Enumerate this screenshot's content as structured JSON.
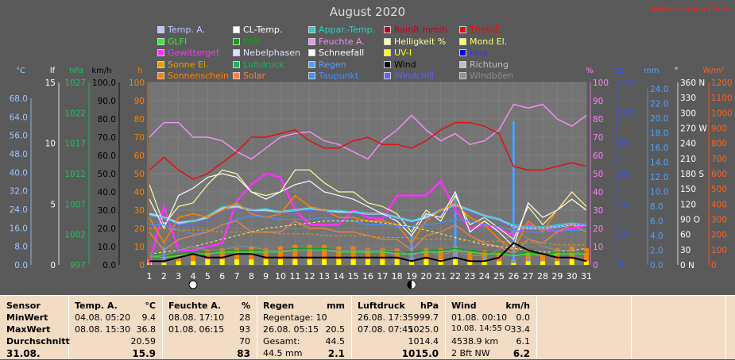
{
  "title": "August 2020",
  "watermark": "Wetterstation Peter",
  "legend": [
    {
      "label": "Temp. A.",
      "color": "#b8c8ff"
    },
    {
      "label": "CL-Temp.",
      "color": "#ffffff"
    },
    {
      "label": "Appar.-Temp.",
      "color": "#28d0c0"
    },
    {
      "label": "RainR mm/h",
      "color": "#c00020"
    },
    {
      "label": "ThetaE",
      "color": "#e01010"
    },
    {
      "label": "GLFI",
      "color": "#30f030"
    },
    {
      "label": "WBI",
      "color": "#10a010"
    },
    {
      "label": "Feuchte A.",
      "color": "#f090f0"
    },
    {
      "label": "Helligkeit %",
      "color": "#ffffa0"
    },
    {
      "label": "Mond El.",
      "color": "#ffff60"
    },
    {
      "label": "Gewittergef.",
      "color": "#ff30ff"
    },
    {
      "label": "Nebelphasen",
      "color": "#e0e0ff"
    },
    {
      "label": "Schneefall",
      "color": "#ffffff"
    },
    {
      "label": "UV-I",
      "color": "#ffff00"
    },
    {
      "label": "klux",
      "color": "#0000ff"
    },
    {
      "label": "Sonne El.",
      "color": "#e8a000"
    },
    {
      "label": "Luftdruck",
      "color": "#20b060"
    },
    {
      "label": "Regen",
      "color": "#50a0ff"
    },
    {
      "label": "Wind",
      "color": "#000000"
    },
    {
      "label": "Richtung",
      "color": "#c0c0c0"
    },
    {
      "label": "Sonnenschein",
      "color": "#ff8000"
    },
    {
      "label": "Solar",
      "color": "#ff8040"
    },
    {
      "label": "Taupunkt",
      "color": "#4090ff"
    },
    {
      "label": "Windchill",
      "color": "#6060ff"
    },
    {
      "label": "Windböen",
      "color": "#909090"
    }
  ],
  "axes": {
    "temp": {
      "unit": "°C",
      "ticks": [
        "68.0",
        "64.0",
        "56.0",
        "48.0",
        "40.0",
        "32.0",
        "24.0",
        "16.0",
        "8.0",
        "0.0"
      ],
      "color": "#9cc8ff"
    },
    "lf": {
      "unit": "lf",
      "ticks": [
        "15",
        "10",
        "5",
        "0"
      ],
      "color": "#ffffff"
    },
    "hpa": {
      "unit": "hPa",
      "ticks": [
        "1027",
        "1022",
        "1017",
        "1012",
        "1007",
        "1002",
        "997"
      ],
      "color": "#20c060"
    },
    "kmh": {
      "unit": "km/h",
      "ticks": [
        "100.0",
        "90.0",
        "80.0",
        "70.0",
        "60.0",
        "50.0",
        "40.0",
        "30.0",
        "20.0",
        "10.0",
        "0.0"
      ],
      "color": "#000000"
    },
    "h": {
      "unit": "h",
      "ticks": [
        "100",
        "90",
        "80",
        "70",
        "60",
        "50",
        "40",
        "30",
        "20",
        "10",
        "0"
      ],
      "color": "#ff8000"
    },
    "pct": {
      "unit": "%",
      "ticks": [
        "100",
        "90",
        "80",
        "70",
        "60",
        "50",
        "40",
        "30",
        "20",
        "10",
        "0"
      ],
      "color": "#ff80ff"
    },
    "cb": {
      "unit": "cb",
      "ticks": [
        "120",
        "100",
        "80",
        "60",
        "40",
        "20",
        "0"
      ],
      "color": "#3050ff"
    },
    "mm": {
      "unit": "mm",
      "ticks": [
        "24.0",
        "22.0",
        "20.0",
        "18.0",
        "16.0",
        "14.0",
        "12.0",
        "10.0",
        "8.0",
        "6.0",
        "4.0",
        "2.0",
        "0.0"
      ],
      "color": "#50a0ff"
    },
    "deg": {
      "unit": "°",
      "ticks": [
        "360 N",
        "330",
        "300",
        "270 W",
        "240",
        "210",
        "180 S",
        "150",
        "120",
        "90 O",
        "60",
        "30",
        "0 N"
      ],
      "color": "#ffffff"
    },
    "wm2": {
      "unit": "W/m²",
      "ticks": [
        "1200",
        "1100",
        "1000",
        "900",
        "800",
        "700",
        "600",
        "500",
        "400",
        "300",
        "200",
        "100",
        "0"
      ],
      "color": "#ff6020"
    }
  },
  "chart_data": {
    "type": "line",
    "x": [
      1,
      2,
      3,
      4,
      5,
      6,
      7,
      8,
      9,
      10,
      11,
      12,
      13,
      14,
      15,
      16,
      17,
      18,
      19,
      20,
      21,
      22,
      23,
      24,
      25,
      26,
      27,
      28,
      29,
      30,
      31
    ],
    "moon_phases": [
      {
        "day": 4,
        "phase": "new"
      },
      {
        "day": 19,
        "phase": "full"
      }
    ],
    "series": [
      {
        "name": "Luftdruck",
        "color": "#20b060",
        "width": 2.5,
        "values": [
          1015.2,
          1011.5,
          1010.7,
          1012.9,
          1015.6,
          1022.0,
          1023.8,
          1021.2,
          1019.5,
          1019.0,
          1021.7,
          1021.2,
          1019.5,
          1016.8,
          1017.9,
          1018.0,
          1013.4,
          1010.6,
          1011.5,
          1012.1,
          1012.8,
          1013.5,
          1014.0,
          1014.0,
          1012.0,
          1003.0,
          1005.0,
          1003.5,
          1002.0,
          1007.0,
          1012.0
        ]
      },
      {
        "name": "Feuchte A.",
        "color": "#f090f0",
        "width": 1.5,
        "values": [
          70,
          78,
          78,
          70,
          70,
          68,
          62,
          58,
          64,
          70,
          72,
          73,
          68,
          66,
          62,
          58,
          68,
          74,
          82,
          74,
          68,
          72,
          66,
          68,
          74,
          88,
          86,
          88,
          80,
          76,
          82
        ]
      },
      {
        "name": "ThetaE",
        "color": "#e01010",
        "width": 1.5,
        "values": [
          52,
          59,
          52,
          47,
          50,
          56,
          62,
          70,
          70,
          72,
          74,
          68,
          64,
          64,
          68,
          70,
          66,
          66,
          64,
          68,
          74,
          78,
          78,
          76,
          72,
          54,
          52,
          52,
          54,
          56,
          54
        ]
      },
      {
        "name": "Gewittergef.",
        "color": "#ff30ff",
        "width": 2.5,
        "values": [
          0,
          32,
          8,
          8,
          10,
          12,
          35,
          44,
          50,
          48,
          30,
          22,
          22,
          22,
          30,
          26,
          25,
          38,
          38,
          38,
          46,
          30,
          20,
          22,
          20,
          16,
          22,
          20,
          18,
          20,
          22
        ]
      },
      {
        "name": "Helligkeit %",
        "color": "#ffffa0",
        "width": 1.2,
        "values": [
          44,
          22,
          32,
          34,
          44,
          52,
          50,
          40,
          38,
          40,
          52,
          52,
          45,
          40,
          40,
          34,
          32,
          28,
          18,
          30,
          24,
          38,
          22,
          26,
          20,
          14,
          32,
          22,
          30,
          40,
          32
        ]
      },
      {
        "name": "Temp. A.",
        "color": "#b8c8ff",
        "width": 2.5,
        "values": [
          28,
          26,
          23,
          24,
          26,
          31,
          32,
          30,
          30,
          29,
          30,
          31,
          30,
          29,
          29,
          28,
          28,
          26,
          24,
          26,
          30,
          33,
          30,
          27,
          25,
          21,
          20,
          20,
          21,
          22,
          22
        ]
      },
      {
        "name": "Appar.-Temp.",
        "color": "#28d0c0",
        "width": 1.2,
        "values": [
          27,
          26,
          22,
          24,
          27,
          32,
          33,
          30,
          31,
          29,
          30,
          31,
          30,
          30,
          29,
          28,
          28,
          26,
          24,
          27,
          30,
          33,
          30,
          27,
          25,
          22,
          21,
          21,
          22,
          23,
          22
        ]
      },
      {
        "name": "Sonnenschein",
        "color": "#ff8000",
        "width": 1.5,
        "values": [
          26,
          12,
          26,
          28,
          26,
          30,
          34,
          28,
          26,
          28,
          38,
          32,
          30,
          26,
          26,
          24,
          24,
          22,
          12,
          24,
          30,
          34,
          26,
          22,
          14,
          8,
          24,
          18,
          30,
          36,
          30
        ]
      },
      {
        "name": "CL-Temp.",
        "color": "#ffffff",
        "width": 1.2,
        "values": [
          36,
          20,
          38,
          42,
          48,
          50,
          48,
          40,
          36,
          40,
          44,
          46,
          40,
          38,
          36,
          32,
          28,
          24,
          16,
          28,
          26,
          40,
          18,
          24,
          18,
          10,
          34,
          26,
          30,
          36,
          30
        ]
      },
      {
        "name": "Taupunkt",
        "color": "#4090ff",
        "width": 1.2,
        "values": [
          22,
          22,
          19,
          17,
          18,
          22,
          25,
          27,
          26,
          25,
          25,
          25,
          26,
          24,
          24,
          22,
          22,
          21,
          21,
          22,
          23,
          25,
          24,
          22,
          21,
          19,
          18,
          18,
          19,
          19,
          19
        ]
      },
      {
        "name": "Windchill",
        "color": "#6060ff",
        "width": 1.2,
        "dash": "3,2",
        "values": [
          26,
          24,
          22,
          22,
          24,
          28,
          30,
          29,
          28,
          28,
          29,
          30,
          29,
          28,
          28,
          27,
          27,
          25,
          23,
          25,
          28,
          31,
          29,
          26,
          24,
          21,
          20,
          20,
          21,
          22,
          22
        ]
      },
      {
        "name": "Solar",
        "color": "#ff8040",
        "width": 1.2,
        "values": [
          18,
          8,
          14,
          16,
          18,
          22,
          24,
          18,
          18,
          18,
          24,
          20,
          20,
          18,
          18,
          16,
          14,
          14,
          8,
          16,
          18,
          22,
          16,
          12,
          10,
          6,
          14,
          12,
          18,
          22,
          18
        ]
      },
      {
        "name": "Mond El.",
        "color": "#ffff60",
        "width": 1,
        "dash": "3,3",
        "values": [
          6,
          7,
          8,
          10,
          12,
          14,
          16,
          18,
          20,
          21,
          22,
          23,
          24,
          24,
          24,
          24,
          23,
          22,
          21,
          19,
          17,
          15,
          13,
          11,
          10,
          9,
          8,
          7,
          7,
          8,
          9
        ]
      },
      {
        "name": "Sonne El.",
        "color": "#e8a000",
        "width": 1,
        "dash": "3,3",
        "values": [
          20,
          20,
          19,
          19,
          19,
          18,
          18,
          18,
          18,
          17,
          17,
          17,
          16,
          16,
          16,
          16,
          15,
          15,
          15,
          14,
          14,
          14,
          13,
          13,
          13,
          12,
          12,
          12,
          11,
          11,
          11
        ]
      },
      {
        "name": "GLFI",
        "color": "#30f030",
        "width": 1.2,
        "values": [
          5,
          4,
          5,
          6,
          6,
          7,
          7,
          7,
          7,
          7,
          8,
          8,
          8,
          7,
          7,
          7,
          7,
          6,
          6,
          7,
          7,
          8,
          7,
          6,
          6,
          5,
          6,
          5,
          6,
          6,
          6
        ]
      },
      {
        "name": "WBI",
        "color": "#10a010",
        "width": 1.2,
        "values": [
          6,
          5,
          6,
          7,
          7,
          8,
          8,
          8,
          8,
          8,
          9,
          9,
          9,
          8,
          8,
          8,
          8,
          7,
          7,
          8,
          8,
          9,
          8,
          7,
          7,
          6,
          7,
          6,
          7,
          7,
          7
        ]
      },
      {
        "name": "Wind",
        "color": "#000000",
        "width": 2,
        "values": [
          2,
          2,
          4,
          6,
          4,
          4,
          6,
          6,
          4,
          4,
          4,
          4,
          4,
          4,
          4,
          4,
          4,
          4,
          2,
          4,
          2,
          4,
          2,
          2,
          4,
          12,
          8,
          6,
          4,
          4,
          2
        ]
      },
      {
        "name": "Windböen",
        "color": "#909090",
        "width": 1,
        "values": [
          5,
          5,
          8,
          10,
          8,
          8,
          10,
          10,
          8,
          8,
          8,
          8,
          8,
          8,
          8,
          8,
          8,
          8,
          5,
          8,
          5,
          8,
          5,
          5,
          8,
          20,
          14,
          10,
          8,
          8,
          5
        ]
      }
    ],
    "bars": [
      {
        "name": "Sonnenschein",
        "color": "#ff8000",
        "values": [
          3,
          3,
          4,
          5,
          8,
          9,
          9,
          10,
          9,
          10,
          11,
          11,
          11,
          10,
          10,
          9,
          9,
          9,
          4,
          9,
          9,
          10,
          7,
          8,
          7,
          3,
          8,
          6,
          9,
          10,
          9
        ]
      },
      {
        "name": "Regen",
        "color": "#50a0ff",
        "values": [
          0,
          2.4,
          0,
          0,
          0,
          0,
          0,
          0,
          0,
          0,
          0,
          0,
          0,
          0,
          0,
          0,
          0,
          0,
          4.0,
          0,
          0,
          9.6,
          0,
          1.2,
          0,
          19.6,
          1.0,
          0.6,
          0,
          0,
          0
        ]
      },
      {
        "name": "UV-I",
        "color": "#ffff00",
        "values": [
          1,
          1,
          2,
          2,
          3,
          3,
          3,
          3,
          3,
          3,
          3,
          3,
          3,
          3,
          3,
          3,
          3,
          3,
          2,
          3,
          3,
          3,
          2,
          2,
          2,
          1,
          2,
          2,
          2,
          3,
          2
        ]
      }
    ],
    "y_scale": {
      "left_h": [
        0,
        100
      ]
    }
  },
  "stats": {
    "sensor": {
      "header": "Sensor",
      "rows": [
        "MinWert",
        "MaxWert",
        "Durchschnitt",
        "31.08."
      ]
    },
    "temp": {
      "header": "Temp. A.",
      "unit": "°C",
      "rows": [
        [
          "04.08.  05:20",
          "9.4"
        ],
        [
          "08.08.  15:30",
          "36.8"
        ],
        [
          "",
          "20.59"
        ],
        [
          "",
          "15.9"
        ]
      ]
    },
    "feuchte": {
      "header": "Feuchte A.",
      "unit": "%",
      "rows": [
        [
          "08.08.  17:10",
          "28"
        ],
        [
          "01.08.  06:15",
          "93"
        ],
        [
          "",
          "70"
        ],
        [
          "",
          "83"
        ]
      ]
    },
    "regen": {
      "header": "Regen",
      "unit": "mm",
      "rows": [
        [
          "Regentage: 10",
          ""
        ],
        [
          "26.08.  05:15",
          "20.5"
        ],
        [
          "Gesamt:",
          "44.5"
        ],
        [
          "44.5 mm",
          "2.1"
        ]
      ]
    },
    "luftdruck": {
      "header": "Luftdruck",
      "unit": "hPa",
      "rows": [
        [
          "26.08.  17:35",
          "999.7"
        ],
        [
          "07.08.  07:45",
          "1025.0"
        ],
        [
          "",
          "1014.4"
        ],
        [
          "",
          "1015.0"
        ]
      ]
    },
    "wind": {
      "header": "Wind",
      "unit": "km/h",
      "rows": [
        [
          "01.08.  00:10",
          "0.0"
        ],
        [
          "10.08.  14:55  O",
          "33.4"
        ],
        [
          "4538.9 km",
          "6.1"
        ],
        [
          "2 Bft NW",
          "6.2"
        ]
      ]
    }
  }
}
